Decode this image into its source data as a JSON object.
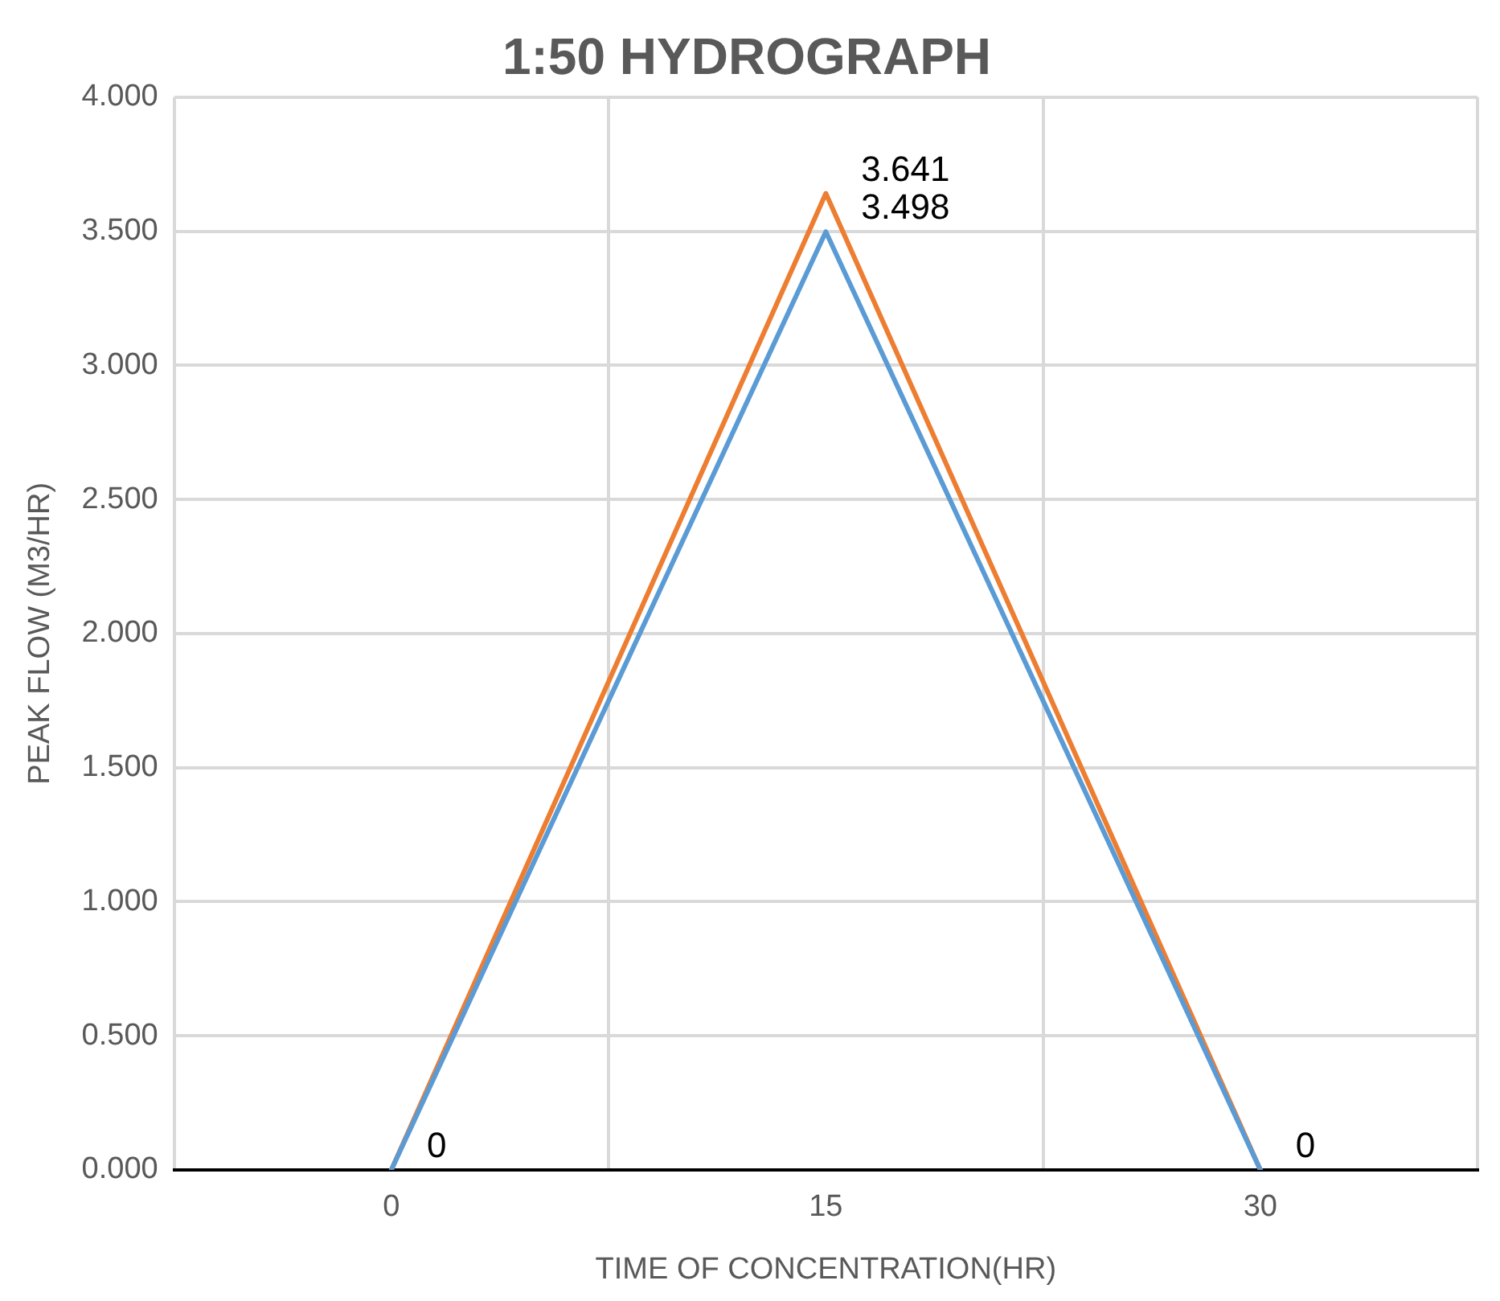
{
  "chart_data": {
    "type": "line",
    "title": "1:50 HYDROGRAPH",
    "xlabel": "TIME OF CONCENTRATION(HR)",
    "ylabel": "PEAK FLOW (M3/HR)",
    "categories": [
      "0",
      "15",
      "30"
    ],
    "series": [
      {
        "color": "#ed7d31",
        "values": [
          0,
          3.641,
          0
        ],
        "value_labels": [
          "0",
          "3.641",
          "0"
        ]
      },
      {
        "color": "#5b9bd5",
        "values": [
          0,
          3.498,
          0
        ],
        "value_labels": [
          null,
          "3.498",
          null
        ]
      }
    ],
    "ylim": [
      0,
      4
    ],
    "yticks": [
      {
        "value": 0,
        "label": "0.000"
      },
      {
        "value": 0.5,
        "label": "0.500"
      },
      {
        "value": 1,
        "label": "1.000"
      },
      {
        "value": 1.5,
        "label": "1.500"
      },
      {
        "value": 2,
        "label": "2.000"
      },
      {
        "value": 2.5,
        "label": "2.500"
      },
      {
        "value": 3,
        "label": "3.000"
      },
      {
        "value": 3.5,
        "label": "3.500"
      },
      {
        "value": 4,
        "label": "4.000"
      }
    ],
    "grid": true,
    "legend": false,
    "marker": "none",
    "line_style": "solid"
  }
}
